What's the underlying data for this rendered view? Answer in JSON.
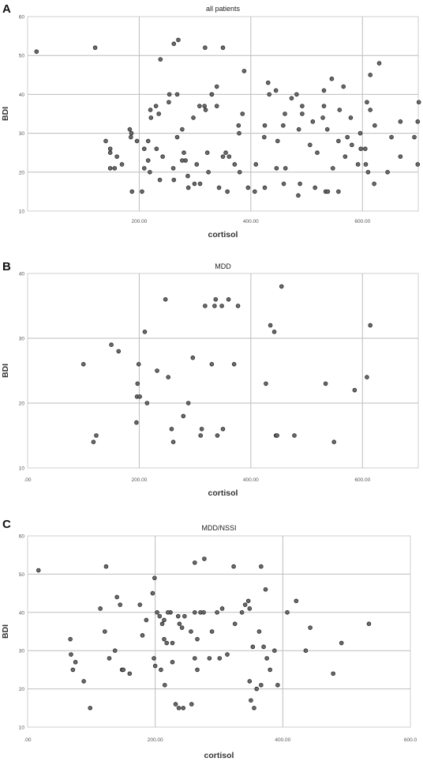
{
  "panels": [
    {
      "letter": "A"
    },
    {
      "letter": "B"
    },
    {
      "letter": "C"
    }
  ],
  "chart_data": [
    {
      "type": "scatter",
      "title": "all patients",
      "xlabel": "cortisol",
      "ylabel": "BDI",
      "xlim": [
        0,
        700
      ],
      "ylim": [
        10,
        60
      ],
      "xticks": [
        200,
        400,
        600
      ],
      "xtick_labels": [
        "200.00",
        "400.00",
        "600.00"
      ],
      "yticks": [
        10,
        20,
        30,
        40,
        50,
        60
      ],
      "ytick_labels": [
        "10",
        "20",
        "30",
        "40",
        "50",
        "60"
      ],
      "grid": true,
      "x": [
        16,
        121,
        238,
        262,
        270,
        318,
        350,
        388,
        431,
        492,
        531,
        545,
        566,
        608,
        614,
        630,
        140,
        148,
        185,
        196,
        221,
        231,
        242,
        253,
        268,
        277,
        283,
        317,
        330,
        339,
        361,
        379,
        424,
        448,
        458,
        473,
        482,
        506,
        531,
        537,
        557,
        573,
        579,
        596,
        605,
        622,
        652,
        668,
        693,
        699,
        148,
        160,
        169,
        186,
        209,
        216,
        220,
        230,
        235,
        254,
        268,
        280,
        297,
        308,
        319,
        330,
        339,
        355,
        378,
        385,
        425,
        433,
        445,
        461,
        486,
        492,
        511,
        529,
        559,
        592,
        614,
        668,
        699,
        156,
        183,
        209,
        216,
        237,
        261,
        277,
        287,
        299,
        309,
        324,
        350,
        371,
        395,
        407,
        425,
        459,
        485,
        519,
        534,
        547,
        557,
        569,
        581,
        597,
        606,
        610,
        621,
        645,
        701,
        148,
        187,
        205,
        219,
        262,
        288,
        303,
        322,
        343,
        358,
        380,
        409,
        446,
        462,
        488,
        515,
        538
      ],
      "y": [
        51,
        52,
        49,
        53,
        54,
        52,
        52,
        46,
        43,
        37,
        41,
        44,
        42,
        38,
        45,
        48,
        28,
        25,
        29,
        28,
        34,
        26,
        24,
        38,
        40,
        31,
        23,
        37,
        40,
        42,
        24,
        30,
        29,
        28,
        32,
        39,
        40,
        27,
        37,
        31,
        28,
        29,
        34,
        30,
        26,
        32,
        29,
        24,
        29,
        22,
        26,
        24,
        22,
        30,
        21,
        28,
        36,
        37,
        35,
        40,
        29,
        25,
        34,
        37,
        36,
        40,
        37,
        25,
        32,
        35,
        32,
        40,
        41,
        35,
        31,
        35,
        33,
        34,
        36,
        22,
        36,
        33,
        33,
        21,
        31,
        26,
        23,
        18,
        21,
        23,
        19,
        17,
        17,
        20,
        24,
        22,
        16,
        15,
        16,
        17,
        14,
        25,
        15,
        21,
        15,
        24,
        27,
        26,
        22,
        20,
        17,
        20,
        38,
        21,
        15,
        15,
        20,
        18,
        16,
        22,
        25,
        16,
        15,
        20,
        22,
        21,
        21,
        17,
        16,
        15
      ]
    },
    {
      "type": "scatter",
      "title": "MDD",
      "xlabel": "cortisol",
      "ylabel": "BDI",
      "xlim": [
        0,
        700
      ],
      "ylim": [
        10,
        40
      ],
      "xticks": [
        0,
        200,
        400,
        600
      ],
      "xtick_labels": [
        ".00",
        "200.00",
        "400.00",
        "600.00"
      ],
      "yticks": [
        10,
        20,
        30,
        40
      ],
      "ytick_labels": [
        "10",
        "20",
        "30",
        "40"
      ],
      "grid": true,
      "x": [
        100,
        118,
        123,
        150,
        163,
        195,
        196,
        197,
        199,
        201,
        210,
        214,
        232,
        247,
        252,
        258,
        261,
        279,
        288,
        296,
        310,
        312,
        318,
        330,
        335,
        337,
        340,
        348,
        350,
        360,
        370,
        377,
        427,
        435,
        442,
        445,
        455,
        447,
        478,
        534,
        549,
        586,
        608,
        614
      ],
      "y": [
        26,
        14,
        15,
        29,
        28,
        17,
        21,
        23,
        26,
        21,
        31,
        20,
        25,
        36,
        24,
        16,
        14,
        18,
        20,
        27,
        15,
        16,
        35,
        26,
        35,
        36,
        15,
        35,
        16,
        36,
        26,
        35,
        23,
        32,
        31,
        15,
        38,
        15,
        15,
        23,
        14,
        22,
        24,
        32
      ]
    },
    {
      "type": "scatter",
      "title": "MDD/NSSI",
      "xlabel": "cortisol",
      "ylabel": "BDI",
      "xlim": [
        0,
        600
      ],
      "ylim": [
        10,
        60
      ],
      "xticks": [
        0,
        200,
        400,
        600
      ],
      "xtick_labels": [
        ".00",
        "200.00",
        "400.00",
        "600.0"
      ],
      "yticks": [
        10,
        20,
        30,
        40,
        50,
        60
      ],
      "ytick_labels": [
        "10",
        "20",
        "30",
        "40",
        "50",
        "60"
      ],
      "grid": true,
      "x": [
        17,
        123,
        199,
        262,
        277,
        323,
        366,
        373,
        67,
        68,
        75,
        71,
        88,
        98,
        114,
        121,
        128,
        137,
        140,
        145,
        148,
        150,
        160,
        176,
        180,
        186,
        196,
        198,
        200,
        203,
        207,
        211,
        214,
        218,
        224,
        227,
        236,
        238,
        242,
        256,
        262,
        266,
        271,
        276,
        289,
        297,
        301,
        305,
        313,
        325,
        336,
        341,
        346,
        348,
        353,
        363,
        370,
        375,
        380,
        387,
        392,
        407,
        421,
        436,
        443,
        479,
        492,
        535,
        348,
        350,
        355,
        359,
        366,
        215,
        232,
        237,
        257,
        262,
        285,
        244,
        266,
        209,
        214,
        246,
        227,
        220
      ],
      "y": [
        51,
        52,
        49,
        53,
        54,
        52,
        52,
        46,
        33,
        29,
        27,
        25,
        22,
        15,
        41,
        35,
        28,
        30,
        44,
        42,
        25,
        25,
        24,
        42,
        34,
        38,
        45,
        28,
        26,
        40,
        39,
        37,
        33,
        32,
        40,
        27,
        39,
        37,
        36,
        35,
        40,
        33,
        40,
        40,
        35,
        40,
        28,
        41,
        29,
        37,
        40,
        42,
        43,
        41,
        31,
        35,
        31,
        28,
        25,
        30,
        21,
        40,
        43,
        30,
        36,
        24,
        32,
        37,
        22,
        17,
        15,
        20,
        21,
        21,
        16,
        15,
        16,
        28,
        28,
        15,
        25,
        25,
        38,
        39,
        32,
        40
      ]
    }
  ]
}
